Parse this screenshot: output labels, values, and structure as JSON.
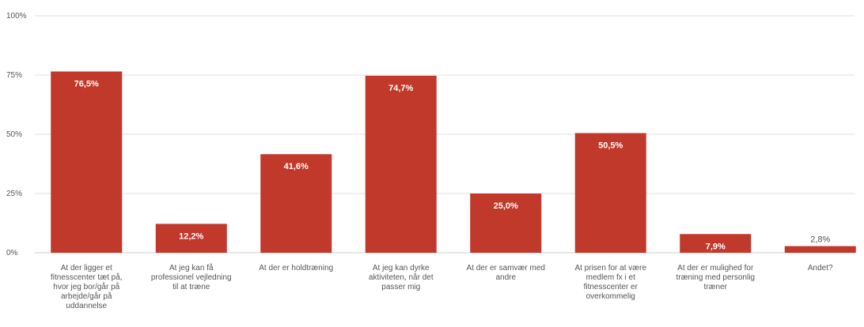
{
  "chart_data": {
    "type": "bar",
    "title": "",
    "xlabel": "",
    "ylabel": "",
    "ylim": [
      0,
      100
    ],
    "yticks": [
      0,
      25,
      50,
      75,
      100
    ],
    "ytick_labels": [
      "0%",
      "25%",
      "50%",
      "75%",
      "100%"
    ],
    "grid": true,
    "bar_color": "#c0392b",
    "categories": [
      "At der ligger et fitnesscenter tæt på, hvor jeg bor/går på arbejde/går på uddannelse",
      "At jeg kan få professionel vejledning til at træne",
      "At der er holdtræning",
      "At jeg kan dyrke aktiviteten, når det passer mig",
      "At der er samvær med andre",
      "At prisen for at være medlem fx i et fitnesscenter er overkommelig",
      "At der er mulighed for træning med personlig træner",
      "Andet?"
    ],
    "values": [
      76.5,
      12.2,
      41.6,
      74.7,
      25.0,
      50.5,
      7.9,
      2.8
    ],
    "value_labels": [
      "76,5%",
      "12,2%",
      "41,6%",
      "74,7%",
      "25,0%",
      "50,5%",
      "7,9%",
      "2,8%"
    ]
  }
}
